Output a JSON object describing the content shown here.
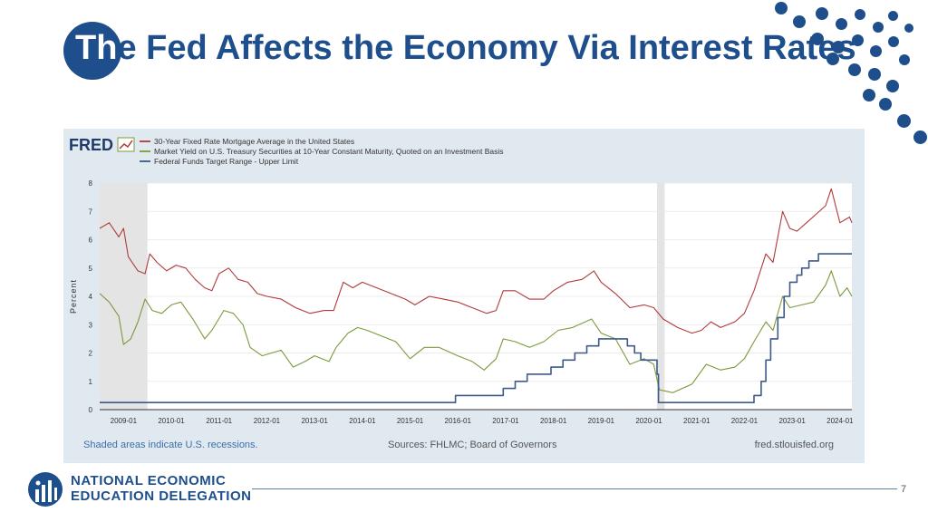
{
  "slide": {
    "title_first": "Th",
    "title_rest": "e Fed Affects the Economy Via Interest Rates",
    "page_number": "7",
    "org_line1": "NATIONAL ECONOMIC",
    "org_line2": "EDUCATION DELEGATION",
    "accent_color": "#1e4f8c"
  },
  "chart_data": {
    "type": "line",
    "brand": "FRED",
    "ylabel": "Percent",
    "ylim": [
      0,
      8
    ],
    "y_ticks": [
      "0",
      "1",
      "2",
      "3",
      "4",
      "5",
      "6",
      "7",
      "8"
    ],
    "x_range": [
      2008.5,
      2024.25
    ],
    "x_ticks": [
      {
        "label": "2009-01",
        "x": 2009
      },
      {
        "label": "2010-01",
        "x": 2010
      },
      {
        "label": "2011-01",
        "x": 2011
      },
      {
        "label": "2012-01",
        "x": 2012
      },
      {
        "label": "2013-01",
        "x": 2013
      },
      {
        "label": "2014-01",
        "x": 2014
      },
      {
        "label": "2015-01",
        "x": 2015
      },
      {
        "label": "2016-01",
        "x": 2016
      },
      {
        "label": "2017-01",
        "x": 2017
      },
      {
        "label": "2018-01",
        "x": 2018
      },
      {
        "label": "2019-01",
        "x": 2019
      },
      {
        "label": "2020-01",
        "x": 2020
      },
      {
        "label": "2021-01",
        "x": 2021
      },
      {
        "label": "2022-01",
        "x": 2022
      },
      {
        "label": "2023-01",
        "x": 2023
      },
      {
        "label": "2024-01",
        "x": 2024
      }
    ],
    "recessions": [
      [
        2008.5,
        2009.5
      ],
      [
        2020.17,
        2020.33
      ]
    ],
    "grid": true,
    "legend_position": "top-left",
    "notes": {
      "left": "Shaded areas indicate U.S. recessions.",
      "center": "Sources: FHLMC; Board of Governors",
      "right": "fred.stlouisfed.org"
    },
    "series": [
      {
        "name": "30-Year Fixed Rate Mortgage Average in the United States",
        "color": "#b03a3a",
        "points": [
          [
            2008.5,
            6.4
          ],
          [
            2008.7,
            6.6
          ],
          [
            2008.9,
            6.1
          ],
          [
            2009.0,
            6.4
          ],
          [
            2009.1,
            5.4
          ],
          [
            2009.3,
            4.9
          ],
          [
            2009.45,
            4.8
          ],
          [
            2009.55,
            5.5
          ],
          [
            2009.7,
            5.2
          ],
          [
            2009.9,
            4.9
          ],
          [
            2010.1,
            5.1
          ],
          [
            2010.3,
            5.0
          ],
          [
            2010.5,
            4.6
          ],
          [
            2010.7,
            4.3
          ],
          [
            2010.85,
            4.2
          ],
          [
            2011.0,
            4.8
          ],
          [
            2011.2,
            5.0
          ],
          [
            2011.4,
            4.6
          ],
          [
            2011.6,
            4.5
          ],
          [
            2011.8,
            4.1
          ],
          [
            2012.0,
            4.0
          ],
          [
            2012.3,
            3.9
          ],
          [
            2012.6,
            3.6
          ],
          [
            2012.9,
            3.4
          ],
          [
            2013.2,
            3.5
          ],
          [
            2013.4,
            3.5
          ],
          [
            2013.6,
            4.5
          ],
          [
            2013.8,
            4.3
          ],
          [
            2014.0,
            4.5
          ],
          [
            2014.3,
            4.3
          ],
          [
            2014.6,
            4.1
          ],
          [
            2014.9,
            3.9
          ],
          [
            2015.1,
            3.7
          ],
          [
            2015.4,
            4.0
          ],
          [
            2015.7,
            3.9
          ],
          [
            2016.0,
            3.8
          ],
          [
            2016.3,
            3.6
          ],
          [
            2016.6,
            3.4
          ],
          [
            2016.8,
            3.5
          ],
          [
            2016.95,
            4.2
          ],
          [
            2017.2,
            4.2
          ],
          [
            2017.5,
            3.9
          ],
          [
            2017.8,
            3.9
          ],
          [
            2018.0,
            4.2
          ],
          [
            2018.3,
            4.5
          ],
          [
            2018.6,
            4.6
          ],
          [
            2018.85,
            4.9
          ],
          [
            2019.0,
            4.5
          ],
          [
            2019.3,
            4.1
          ],
          [
            2019.6,
            3.6
          ],
          [
            2019.9,
            3.7
          ],
          [
            2020.1,
            3.6
          ],
          [
            2020.3,
            3.2
          ],
          [
            2020.6,
            2.9
          ],
          [
            2020.9,
            2.7
          ],
          [
            2021.1,
            2.8
          ],
          [
            2021.3,
            3.1
          ],
          [
            2021.5,
            2.9
          ],
          [
            2021.8,
            3.1
          ],
          [
            2022.0,
            3.4
          ],
          [
            2022.2,
            4.2
          ],
          [
            2022.45,
            5.5
          ],
          [
            2022.6,
            5.2
          ],
          [
            2022.8,
            7.0
          ],
          [
            2022.95,
            6.4
          ],
          [
            2023.1,
            6.3
          ],
          [
            2023.3,
            6.6
          ],
          [
            2023.5,
            6.9
          ],
          [
            2023.7,
            7.2
          ],
          [
            2023.82,
            7.8
          ],
          [
            2024.0,
            6.6
          ],
          [
            2024.2,
            6.8
          ],
          [
            2024.25,
            6.6
          ]
        ]
      },
      {
        "name": "Market Yield on U.S. Treasury Securities at 10-Year Constant Maturity, Quoted on an Investment Basis",
        "color": "#7a9a3a",
        "points": [
          [
            2008.5,
            4.1
          ],
          [
            2008.7,
            3.8
          ],
          [
            2008.9,
            3.3
          ],
          [
            2009.0,
            2.3
          ],
          [
            2009.15,
            2.5
          ],
          [
            2009.3,
            3.1
          ],
          [
            2009.45,
            3.9
          ],
          [
            2009.6,
            3.5
          ],
          [
            2009.8,
            3.4
          ],
          [
            2010.0,
            3.7
          ],
          [
            2010.2,
            3.8
          ],
          [
            2010.45,
            3.2
          ],
          [
            2010.7,
            2.5
          ],
          [
            2010.85,
            2.8
          ],
          [
            2011.1,
            3.5
          ],
          [
            2011.3,
            3.4
          ],
          [
            2011.5,
            3.0
          ],
          [
            2011.65,
            2.2
          ],
          [
            2011.9,
            1.9
          ],
          [
            2012.1,
            2.0
          ],
          [
            2012.3,
            2.1
          ],
          [
            2012.55,
            1.5
          ],
          [
            2012.8,
            1.7
          ],
          [
            2013.0,
            1.9
          ],
          [
            2013.3,
            1.7
          ],
          [
            2013.45,
            2.2
          ],
          [
            2013.7,
            2.7
          ],
          [
            2013.9,
            2.9
          ],
          [
            2014.1,
            2.8
          ],
          [
            2014.4,
            2.6
          ],
          [
            2014.7,
            2.4
          ],
          [
            2015.0,
            1.8
          ],
          [
            2015.3,
            2.2
          ],
          [
            2015.6,
            2.2
          ],
          [
            2016.0,
            1.9
          ],
          [
            2016.3,
            1.7
          ],
          [
            2016.55,
            1.4
          ],
          [
            2016.8,
            1.8
          ],
          [
            2016.95,
            2.5
          ],
          [
            2017.2,
            2.4
          ],
          [
            2017.5,
            2.2
          ],
          [
            2017.8,
            2.4
          ],
          [
            2018.1,
            2.8
          ],
          [
            2018.4,
            2.9
          ],
          [
            2018.8,
            3.2
          ],
          [
            2019.0,
            2.7
          ],
          [
            2019.3,
            2.5
          ],
          [
            2019.6,
            1.6
          ],
          [
            2019.9,
            1.8
          ],
          [
            2020.1,
            1.6
          ],
          [
            2020.22,
            0.7
          ],
          [
            2020.5,
            0.6
          ],
          [
            2020.9,
            0.9
          ],
          [
            2021.2,
            1.6
          ],
          [
            2021.5,
            1.4
          ],
          [
            2021.8,
            1.5
          ],
          [
            2022.0,
            1.8
          ],
          [
            2022.2,
            2.4
          ],
          [
            2022.45,
            3.1
          ],
          [
            2022.6,
            2.8
          ],
          [
            2022.8,
            4.0
          ],
          [
            2022.95,
            3.6
          ],
          [
            2023.2,
            3.7
          ],
          [
            2023.45,
            3.8
          ],
          [
            2023.7,
            4.4
          ],
          [
            2023.82,
            4.9
          ],
          [
            2024.0,
            4.0
          ],
          [
            2024.15,
            4.3
          ],
          [
            2024.25,
            4.0
          ]
        ]
      },
      {
        "name": "Federal Funds Target Range - Upper Limit",
        "color": "#3d5a8a",
        "points": [
          [
            2008.5,
            0.25
          ],
          [
            2015.95,
            0.25
          ],
          [
            2015.95,
            0.5
          ],
          [
            2016.95,
            0.5
          ],
          [
            2016.95,
            0.75
          ],
          [
            2017.2,
            0.75
          ],
          [
            2017.2,
            1.0
          ],
          [
            2017.45,
            1.0
          ],
          [
            2017.45,
            1.25
          ],
          [
            2017.95,
            1.25
          ],
          [
            2017.95,
            1.5
          ],
          [
            2018.2,
            1.5
          ],
          [
            2018.2,
            1.75
          ],
          [
            2018.45,
            1.75
          ],
          [
            2018.45,
            2.0
          ],
          [
            2018.7,
            2.0
          ],
          [
            2018.7,
            2.25
          ],
          [
            2018.95,
            2.25
          ],
          [
            2018.95,
            2.5
          ],
          [
            2019.55,
            2.5
          ],
          [
            2019.55,
            2.25
          ],
          [
            2019.7,
            2.25
          ],
          [
            2019.7,
            2.0
          ],
          [
            2019.83,
            2.0
          ],
          [
            2019.83,
            1.75
          ],
          [
            2020.17,
            1.75
          ],
          [
            2020.17,
            1.25
          ],
          [
            2020.2,
            1.25
          ],
          [
            2020.2,
            0.25
          ],
          [
            2022.2,
            0.25
          ],
          [
            2022.2,
            0.5
          ],
          [
            2022.35,
            0.5
          ],
          [
            2022.35,
            1.0
          ],
          [
            2022.45,
            1.0
          ],
          [
            2022.45,
            1.75
          ],
          [
            2022.55,
            1.75
          ],
          [
            2022.55,
            2.5
          ],
          [
            2022.7,
            2.5
          ],
          [
            2022.7,
            3.25
          ],
          [
            2022.83,
            3.25
          ],
          [
            2022.83,
            4.0
          ],
          [
            2022.95,
            4.0
          ],
          [
            2022.95,
            4.5
          ],
          [
            2023.1,
            4.5
          ],
          [
            2023.1,
            4.75
          ],
          [
            2023.2,
            4.75
          ],
          [
            2023.2,
            5.0
          ],
          [
            2023.35,
            5.0
          ],
          [
            2023.35,
            5.25
          ],
          [
            2023.55,
            5.25
          ],
          [
            2023.55,
            5.5
          ],
          [
            2024.25,
            5.5
          ]
        ]
      }
    ]
  }
}
